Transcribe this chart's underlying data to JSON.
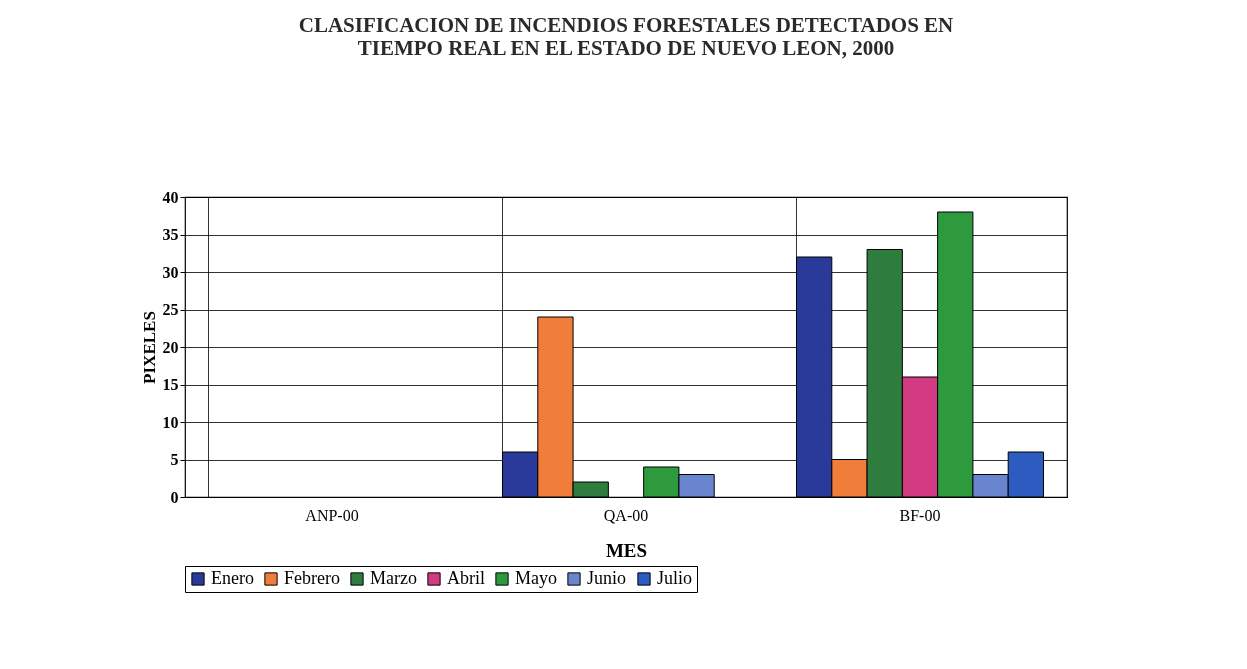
{
  "chart_data": {
    "type": "bar",
    "title": [
      "CLASIFICACION DE INCENDIOS FORESTALES DETECTADOS EN",
      "TIEMPO REAL EN EL ESTADO DE NUEVO LEON, 2000"
    ],
    "xlabel": "MES",
    "ylabel": "PIXELES",
    "categories": [
      "ANP-00",
      "QA-00",
      "BF-00"
    ],
    "series": [
      {
        "name": "Enero",
        "color": "#2a3a9a",
        "values": [
          0,
          6,
          32
        ]
      },
      {
        "name": "Febrero",
        "color": "#f07d3a",
        "values": [
          0,
          24,
          5
        ]
      },
      {
        "name": "Marzo",
        "color": "#2f7d3e",
        "values": [
          0,
          2,
          33
        ]
      },
      {
        "name": "Abril",
        "color": "#d23a82",
        "values": [
          0,
          0,
          16
        ]
      },
      {
        "name": "Mayo",
        "color": "#2e9a3e",
        "values": [
          0,
          4,
          38
        ]
      },
      {
        "name": "Junio",
        "color": "#6a85d0",
        "values": [
          0,
          3,
          3
        ]
      },
      {
        "name": "Julio",
        "color": "#2d5cc0",
        "values": [
          0,
          0,
          6
        ]
      }
    ],
    "ylim": [
      0,
      40
    ],
    "yticks": [
      0,
      5,
      10,
      15,
      20,
      25,
      30,
      35,
      40
    ],
    "grid": true,
    "legend": "bottom"
  }
}
